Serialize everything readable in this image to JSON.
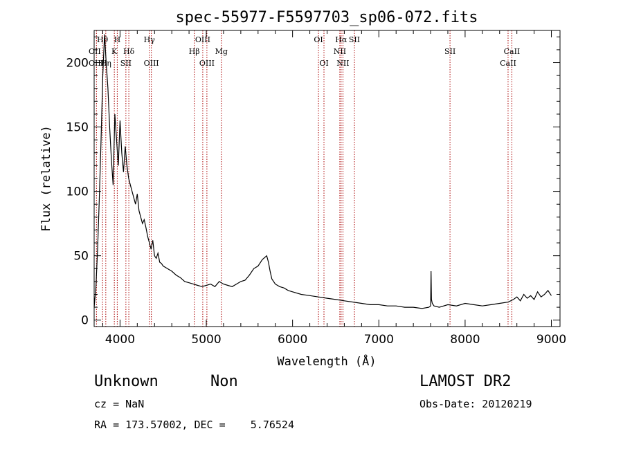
{
  "chart_data": {
    "type": "line",
    "title": "spec-55977-F5597703_sp06-072.fits",
    "xlabel": "Wavelength (Å)",
    "ylabel": "Flux (relative)",
    "xlim": [
      3700,
      9100
    ],
    "ylim": [
      -5,
      225
    ],
    "xticks": [
      4000,
      5000,
      6000,
      7000,
      8000,
      9000
    ],
    "yticks": [
      0,
      50,
      100,
      150,
      200
    ],
    "grid": false,
    "line_color": "#000000",
    "marker_color": "#aa0000",
    "series": [
      {
        "x": [
          3700,
          3720,
          3740,
          3760,
          3780,
          3800,
          3820,
          3840,
          3860,
          3880,
          3900,
          3920,
          3940,
          3960,
          3980,
          4000,
          4020,
          4040,
          4060,
          4080,
          4100,
          4120,
          4140,
          4160,
          4180,
          4200,
          4220,
          4240,
          4260,
          4280,
          4300,
          4320,
          4340,
          4360,
          4380,
          4400,
          4420,
          4440,
          4460,
          4480,
          4500,
          4550,
          4600,
          4650,
          4700,
          4750,
          4800,
          4850,
          4900,
          4950,
          5000,
          5050,
          5100,
          5150,
          5200,
          5250,
          5300,
          5350,
          5400,
          5450,
          5500,
          5550,
          5600,
          5650,
          5700,
          5720,
          5740,
          5760,
          5800,
          5850,
          5900,
          5950,
          6000,
          6100,
          6200,
          6300,
          6400,
          6500,
          6600,
          6700,
          6800,
          6900,
          7000,
          7100,
          7200,
          7300,
          7400,
          7500,
          7580,
          7600,
          7605,
          7610,
          7620,
          7640,
          7700,
          7800,
          7900,
          8000,
          8100,
          8200,
          8300,
          8400,
          8500,
          8560,
          8600,
          8640,
          8680,
          8720,
          8760,
          8800,
          8840,
          8880,
          8920,
          8960,
          9000
        ],
        "y": [
          10,
          25,
          55,
          95,
          140,
          190,
          222,
          200,
          180,
          150,
          125,
          105,
          160,
          140,
          120,
          155,
          130,
          115,
          135,
          120,
          110,
          105,
          100,
          95,
          90,
          98,
          85,
          80,
          75,
          78,
          72,
          65,
          60,
          55,
          62,
          50,
          48,
          52,
          45,
          44,
          42,
          40,
          38,
          35,
          33,
          30,
          29,
          28,
          27,
          26,
          27,
          28,
          26,
          30,
          28,
          27,
          26,
          28,
          30,
          31,
          35,
          40,
          42,
          47,
          50,
          45,
          38,
          32,
          28,
          26,
          25,
          23,
          22,
          20,
          19,
          18,
          17,
          16,
          15,
          14,
          13,
          12,
          12,
          11,
          11,
          10,
          10,
          9,
          10,
          11,
          38,
          16,
          13,
          11,
          10,
          12,
          11,
          13,
          12,
          11,
          12,
          13,
          14,
          16,
          18,
          15,
          20,
          17,
          19,
          16,
          22,
          18,
          20,
          23,
          19
        ]
      }
    ],
    "spectral_lines": [
      {
        "label": "Hθ",
        "x": 3797,
        "row": 0,
        "align": "middle"
      },
      {
        "label": "OII",
        "x": 3727,
        "row": 1,
        "align": "start"
      },
      {
        "label": "OIII",
        "x": 3727,
        "row": 2,
        "align": "start"
      },
      {
        "label": "Hη",
        "x": 3835,
        "row": 2,
        "align": "middle"
      },
      {
        "label": "H",
        "x": 3968,
        "row": 0,
        "align": "middle"
      },
      {
        "label": "K",
        "x": 3934,
        "row": 1,
        "align": "middle"
      },
      {
        "label": "Hδ",
        "x": 4102,
        "row": 1,
        "align": "middle"
      },
      {
        "label": "SII",
        "x": 4068,
        "row": 2,
        "align": "middle"
      },
      {
        "label": "Hγ",
        "x": 4340,
        "row": 0,
        "align": "middle"
      },
      {
        "label": "OIII",
        "x": 4363,
        "row": 2,
        "align": "middle"
      },
      {
        "label": "Hβ",
        "x": 4861,
        "row": 1,
        "align": "middle"
      },
      {
        "label": "OIII",
        "x": 4959,
        "row": 0,
        "align": "middle"
      },
      {
        "label": "OIII",
        "x": 5007,
        "row": 2,
        "align": "middle"
      },
      {
        "label": "Mg",
        "x": 5175,
        "row": 1,
        "align": "middle"
      },
      {
        "label": "OI",
        "x": 6300,
        "row": 0,
        "align": "middle"
      },
      {
        "label": "OI",
        "x": 6364,
        "row": 2,
        "align": "middle"
      },
      {
        "label": "Hα",
        "x": 6563,
        "row": 0,
        "align": "middle"
      },
      {
        "label": "NII",
        "x": 6548,
        "row": 1,
        "align": "middle"
      },
      {
        "label": "NII",
        "x": 6584,
        "row": 2,
        "align": "middle"
      },
      {
        "label": "SII",
        "x": 6717,
        "row": 0,
        "align": "middle"
      },
      {
        "label": "SII",
        "x": 7825,
        "row": 1,
        "align": "middle"
      },
      {
        "label": "CaII",
        "x": 8542,
        "row": 1,
        "align": "middle"
      },
      {
        "label": "CaII",
        "x": 8498,
        "row": 2,
        "align": "middle"
      }
    ]
  },
  "info": {
    "class_name": "Unknown",
    "subclass": "Non",
    "survey": "LAMOST DR2",
    "cz": "cz = NaN",
    "obs_date": "Obs-Date: 20120219",
    "coords": "RA = 173.57002, DEC =    5.76524"
  }
}
